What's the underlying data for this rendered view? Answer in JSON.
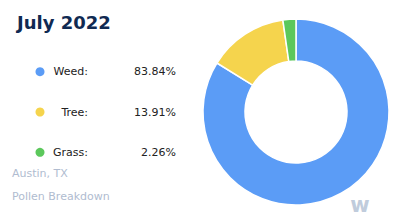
{
  "chart_data": {
    "type": "pie",
    "title": "July 2022",
    "subtitle": [
      "Austin, TX",
      "Pollen Breakdown"
    ],
    "categories": [
      "Weed:",
      "Tree:",
      "Grass:"
    ],
    "values": [
      83.84,
      13.91,
      2.26
    ],
    "value_labels": [
      "83.84%",
      "13.91%",
      "2.26%"
    ],
    "colors": [
      "#5b9cf6",
      "#f5d44d",
      "#5cc85c"
    ],
    "legend": "left",
    "annotations": [
      "w"
    ]
  }
}
